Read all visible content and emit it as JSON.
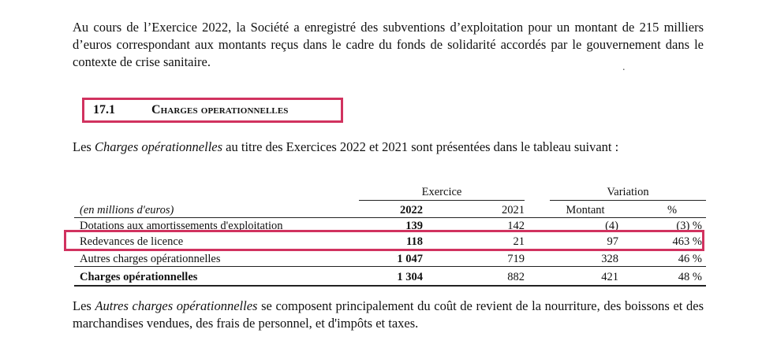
{
  "paragraph1": "Au cours de l’Exercice 2022, la Société a enregistré des subventions d’exploitation pour un montant de 215 milliers d’euros correspondant aux montants reçus dans le cadre du fonds de solidarité accordés par le gouvernement dans le contexte de crise sanitaire.",
  "section": {
    "number": "17.1",
    "title": "Charges operationnelles"
  },
  "paragraph2": {
    "before": "Les ",
    "italic": "Charges opérationnelles",
    "after": " au titre des Exercices 2022 et 2021 sont présentées dans le tableau suivant :"
  },
  "table": {
    "group_exercice": "Exercice",
    "group_variation": "Variation",
    "unit_label": "(en millions d'euros)",
    "columns": [
      "2022",
      "2021",
      "Montant",
      "%"
    ],
    "rows": [
      {
        "label": "Dotations aux amortissements d'exploitation",
        "y2022": "139",
        "y2021": "142",
        "montant": "(4)",
        "pct": "(3) %"
      },
      {
        "label": "Redevances de licence",
        "y2022": "118",
        "y2021": "21",
        "montant": "97",
        "pct": "463 %"
      },
      {
        "label": "Autres charges opérationnelles",
        "y2022": "1 047",
        "y2021": "719",
        "montant": "328",
        "pct": "46 %"
      },
      {
        "label": "Charges opérationnelles",
        "y2022": "1 304",
        "y2021": "882",
        "montant": "421",
        "pct": "48 %"
      }
    ]
  },
  "paragraph3": {
    "before": "Les ",
    "italic": "Autres charges opérationnelles",
    "after": " se composent principalement du coût de revient de la nourriture, des boissons et des marchandises vendues, des frais de personnel, et d'impôts et taxes."
  },
  "highlight_color": "#d1325f"
}
